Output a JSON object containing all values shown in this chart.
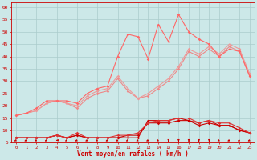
{
  "x": [
    0,
    1,
    2,
    3,
    4,
    5,
    6,
    7,
    8,
    9,
    10,
    11,
    12,
    13,
    14,
    15,
    16,
    17,
    18,
    19,
    20,
    21,
    22,
    23
  ],
  "background_color": "#cce8e8",
  "grid_color": "#aacccc",
  "xlabel": "Vent moyen/en rafales ( km/h )",
  "ylim": [
    5,
    62
  ],
  "xlim": [
    -0.5,
    23.5
  ],
  "yticks": [
    5,
    10,
    15,
    20,
    25,
    30,
    35,
    40,
    45,
    50,
    55,
    60
  ],
  "line1": {
    "y": [
      7,
      7,
      7,
      7,
      8,
      7,
      8,
      7,
      7,
      7,
      7,
      7,
      7,
      14,
      14,
      14,
      15,
      14,
      13,
      14,
      12,
      12,
      10,
      9
    ],
    "color": "#cc0000",
    "linewidth": 0.8
  },
  "line2": {
    "y": [
      7,
      7,
      7,
      7,
      8,
      7,
      8,
      7,
      7,
      7,
      7,
      8,
      8,
      13,
      13,
      13,
      14,
      14,
      12,
      13,
      12,
      12,
      10,
      9
    ],
    "color": "#cc0000",
    "linewidth": 0.8
  },
  "line3": {
    "y": [
      7,
      7,
      7,
      7,
      8,
      7,
      9,
      7,
      7,
      7,
      8,
      8,
      9,
      13,
      14,
      14,
      15,
      15,
      13,
      14,
      13,
      13,
      11,
      9
    ],
    "color": "#dd3333",
    "linewidth": 0.8
  },
  "line4": {
    "y": [
      16,
      17,
      18,
      21,
      22,
      21,
      19,
      23,
      25,
      26,
      31,
      26,
      23,
      24,
      27,
      30,
      35,
      42,
      40,
      43,
      40,
      44,
      42,
      32
    ],
    "color": "#ee8888",
    "linewidth": 0.8
  },
  "line5": {
    "y": [
      16,
      17,
      18,
      21,
      22,
      21,
      20,
      24,
      26,
      27,
      32,
      27,
      23,
      25,
      28,
      31,
      36,
      43,
      41,
      44,
      41,
      45,
      43,
      33
    ],
    "color": "#ee9999",
    "linewidth": 0.8
  },
  "line6": {
    "y": [
      16,
      17,
      19,
      22,
      22,
      22,
      21,
      25,
      27,
      28,
      40,
      49,
      48,
      39,
      53,
      46,
      57,
      50,
      47,
      45,
      40,
      43,
      42,
      32
    ],
    "color": "#ff6666",
    "linewidth": 0.8
  },
  "marker_color": "#cc0000",
  "marker_color_light": "#ff8888",
  "wind_dirs": [
    225,
    225,
    225,
    225,
    270,
    225,
    225,
    225,
    225,
    225,
    225,
    225,
    225,
    225,
    225,
    180,
    180,
    180,
    180,
    180,
    225,
    225,
    225,
    225
  ]
}
